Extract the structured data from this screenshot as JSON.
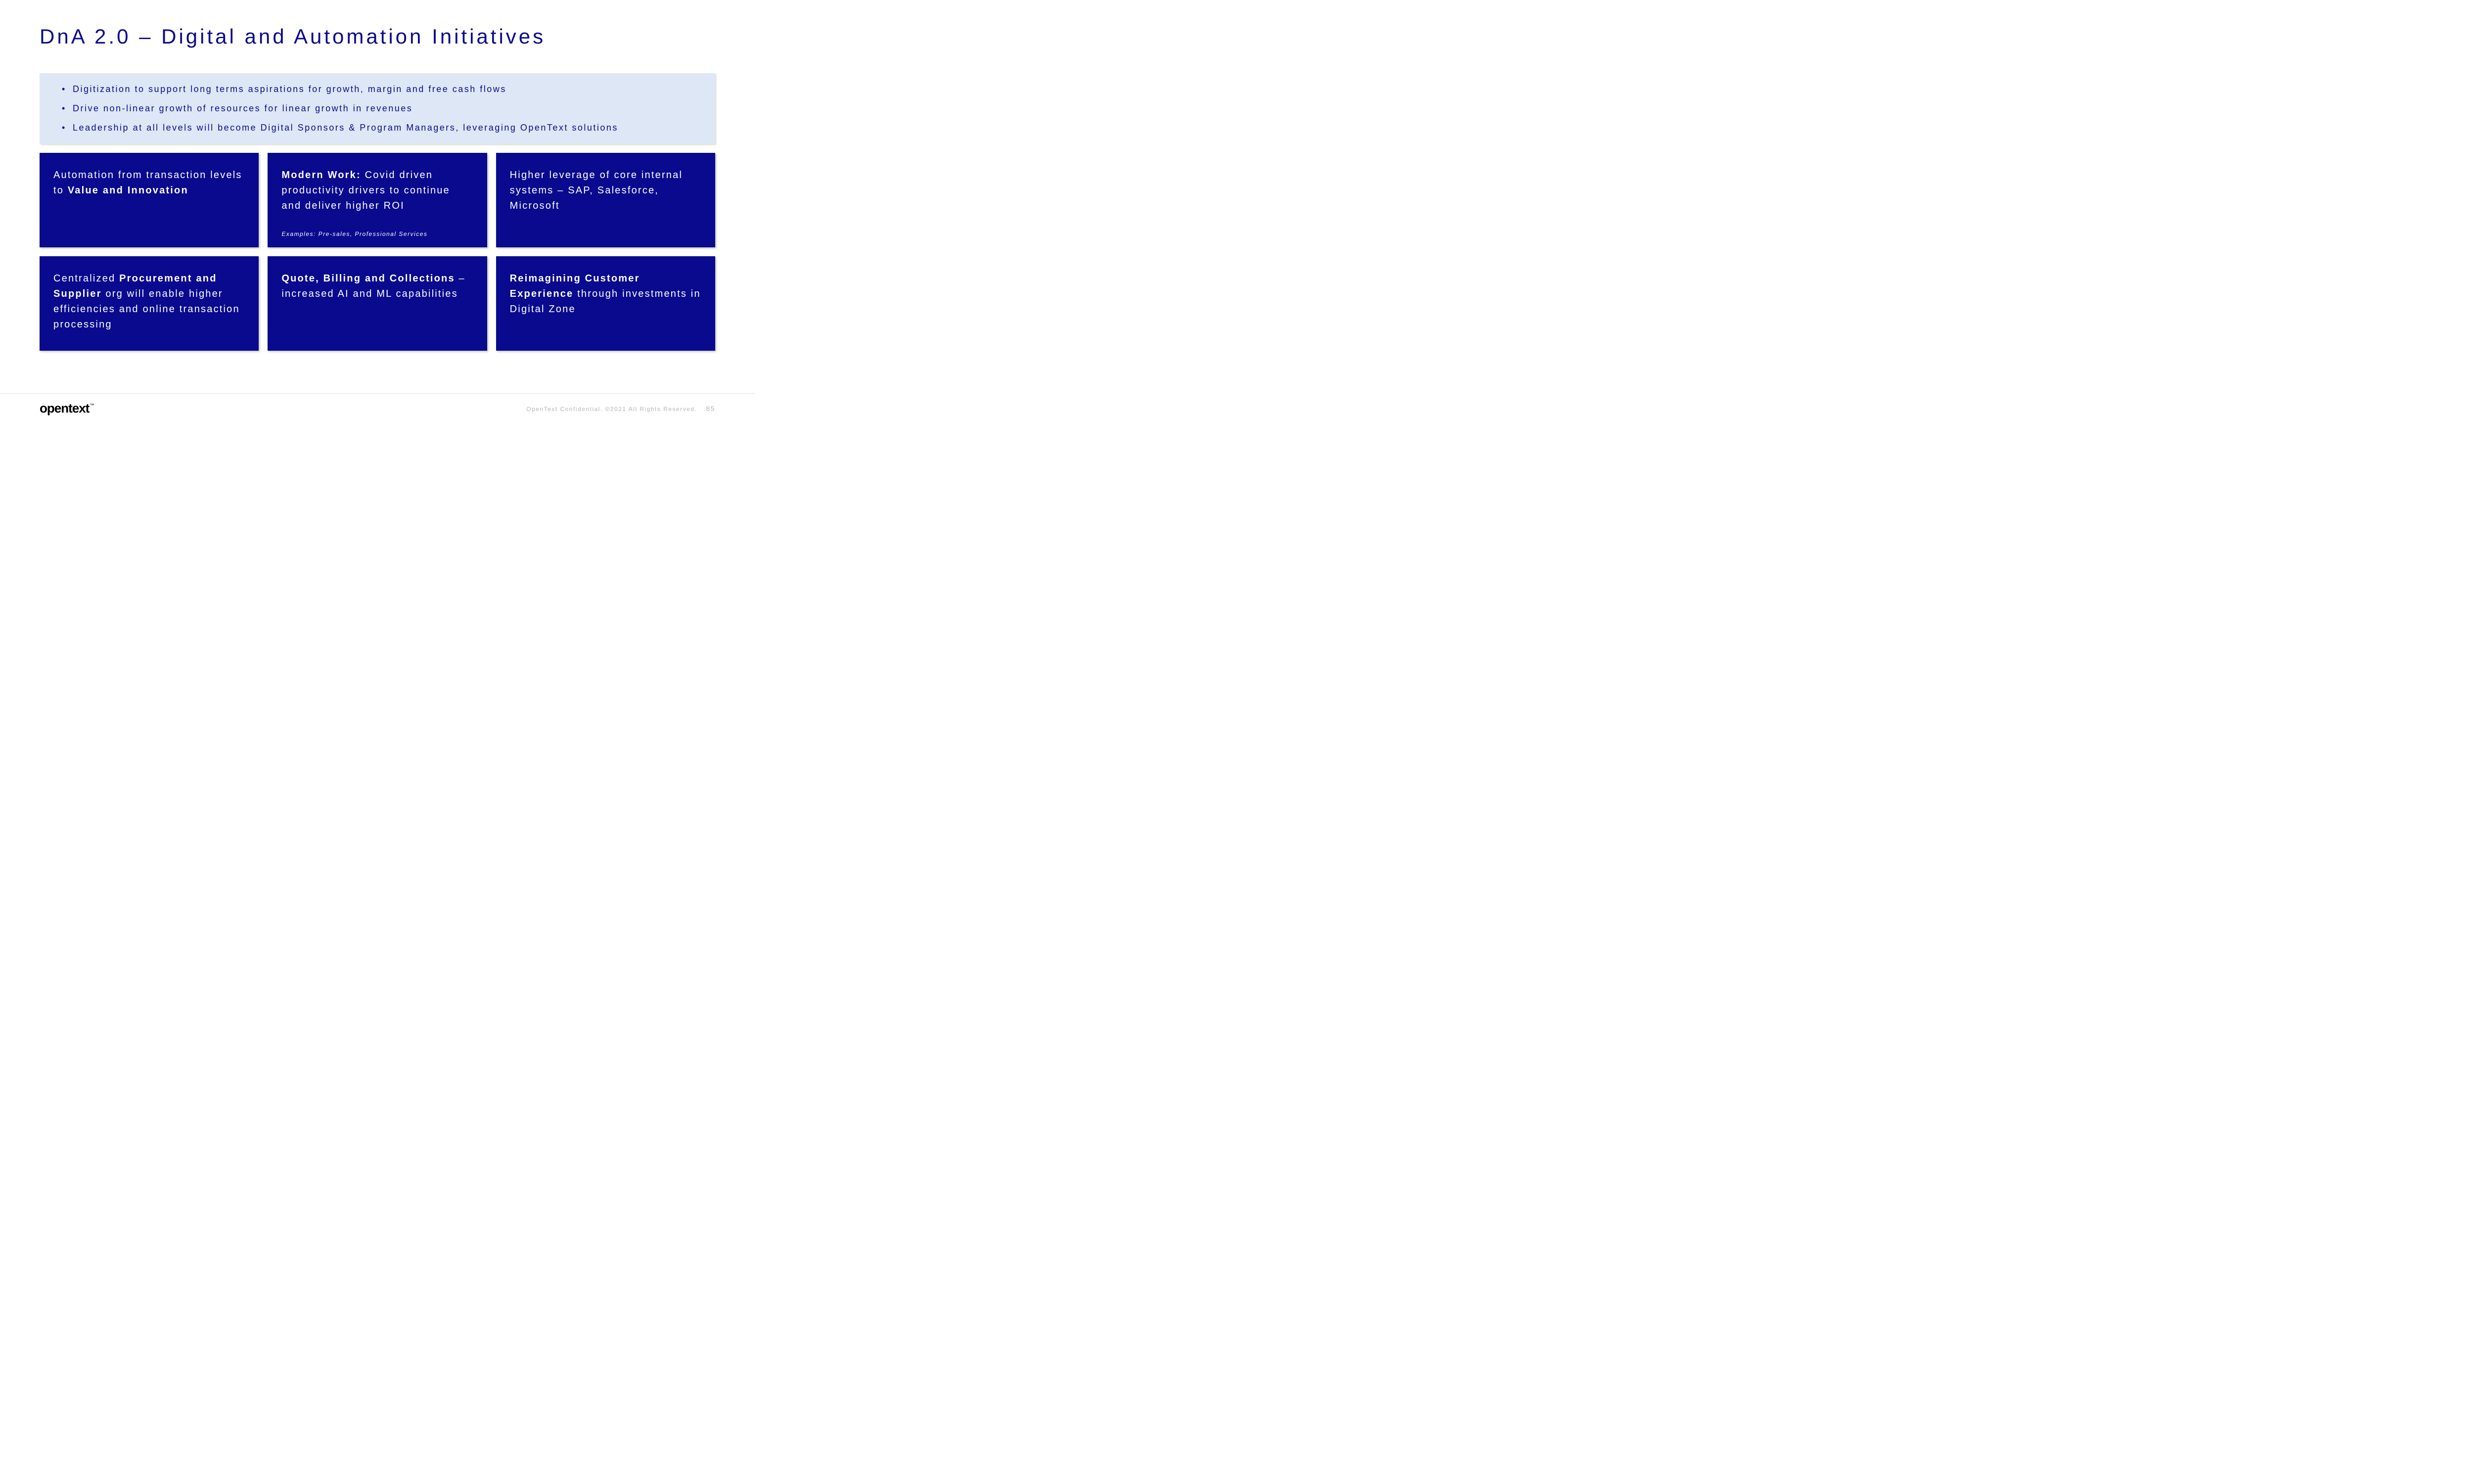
{
  "title": "DnA 2.0 – Digital and Automation Initiatives",
  "colors": {
    "brand_blue": "#0a0a8f",
    "light_blue_bg": "#dde7f6",
    "white": "#ffffff",
    "footer_gray": "#b5b5b5",
    "divider": "#e0e0e0"
  },
  "summary_bullets": [
    "Digitization to support long terms aspirations for growth, margin and free cash flows",
    "Drive non-linear growth of resources for linear growth in revenues",
    "Leadership at all levels will become Digital Sponsors & Program Managers, leveraging OpenText solutions"
  ],
  "cards": [
    {
      "html": "Automation from transaction levels to <b>Value and Innovation</b>",
      "example": ""
    },
    {
      "html": "<b>Modern Work:</b> Covid driven productivity drivers to continue and deliver higher ROI",
      "example": "Examples: Pre-sales, Professional Services"
    },
    {
      "html": "Higher leverage of core internal systems – SAP, Salesforce, Microsoft",
      "example": ""
    },
    {
      "html": "Centralized <b>Procurement and Supplier</b> org will enable higher efficiencies and online transaction processing",
      "example": ""
    },
    {
      "html": "<b>Quote, Billing and Collections</b> – increased AI and ML capabilities",
      "example": ""
    },
    {
      "html": "<b>Reimagining Customer Experience</b> through investments in Digital Zone",
      "example": ""
    }
  ],
  "footer": {
    "logo": "opentext",
    "confidential": "OpenText Confidential. ©2021 All Rights Reserved.",
    "page": "85"
  }
}
